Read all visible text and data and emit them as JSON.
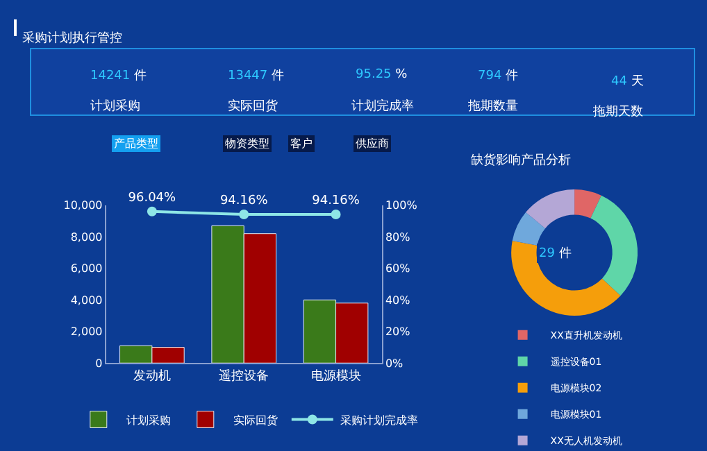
{
  "chart_data": [
    {
      "type": "other",
      "title": "采购计划执行管控",
      "annotations": [
        "14241 件",
        "计划采购",
        "13447 件",
        "实际回货",
        "95.25 %",
        "计划完成率",
        "794 件",
        "拖期数量",
        "44 天",
        "拖期天数",
        "产品类型",
        "物资类型",
        "客户",
        "供应商"
      ]
    },
    {
      "type": "bar",
      "categories": [
        "发动机",
        "遥控设备",
        "电源模块"
      ],
      "series": [
        {
          "name": "计划采购",
          "color": "#3a7a1a",
          "values": [
            1100,
            8700,
            4000
          ]
        },
        {
          "name": "实际回货",
          "color": "#a00000",
          "values": [
            1000,
            8200,
            3800
          ]
        },
        {
          "name": "采购计划完成率",
          "type": "line",
          "axis": "y2",
          "color": "#8ee6e6",
          "values": [
            96.04,
            94.16,
            94.16
          ],
          "value_labels": [
            "96.04%",
            "94.16%",
            "94.16%"
          ]
        }
      ],
      "ylim": [
        0,
        10000
      ],
      "yticks": [
        0,
        {
          "value": 2000,
          "label": "2,000"
        },
        {
          "value": 4000,
          "label": "4,000"
        },
        {
          "value": 6000,
          "label": "6,000"
        },
        {
          "value": 8000,
          "label": "8,000"
        },
        {
          "value": 10000,
          "label": "10,000"
        }
      ],
      "y2lim": [
        0,
        100
      ],
      "y2ticks": [
        {
          "value": 0,
          "label": "0%"
        },
        {
          "value": 20,
          "label": "20%"
        },
        {
          "value": 40,
          "label": "40%"
        },
        {
          "value": 60,
          "label": "60%"
        },
        {
          "value": 80,
          "label": "80%"
        },
        {
          "value": 100,
          "label": "100%"
        }
      ],
      "grid": false,
      "legend": "bottom",
      "marker": "circle"
    },
    {
      "type": "donut",
      "title": "缺货影响产品分析",
      "annotations": [
        "29 件"
      ],
      "categories": [
        "XX直升机发动机",
        "遥控设备01",
        "电源模块02",
        "电源模块01",
        "XX无人机发动机"
      ],
      "values": [
        7,
        30,
        41,
        8,
        14
      ],
      "colors": [
        "#e06666",
        "#5fd6a8",
        "#f59e0b",
        "#6fa8dc",
        "#b4a7d6"
      ],
      "legend": "bottom"
    }
  ]
}
